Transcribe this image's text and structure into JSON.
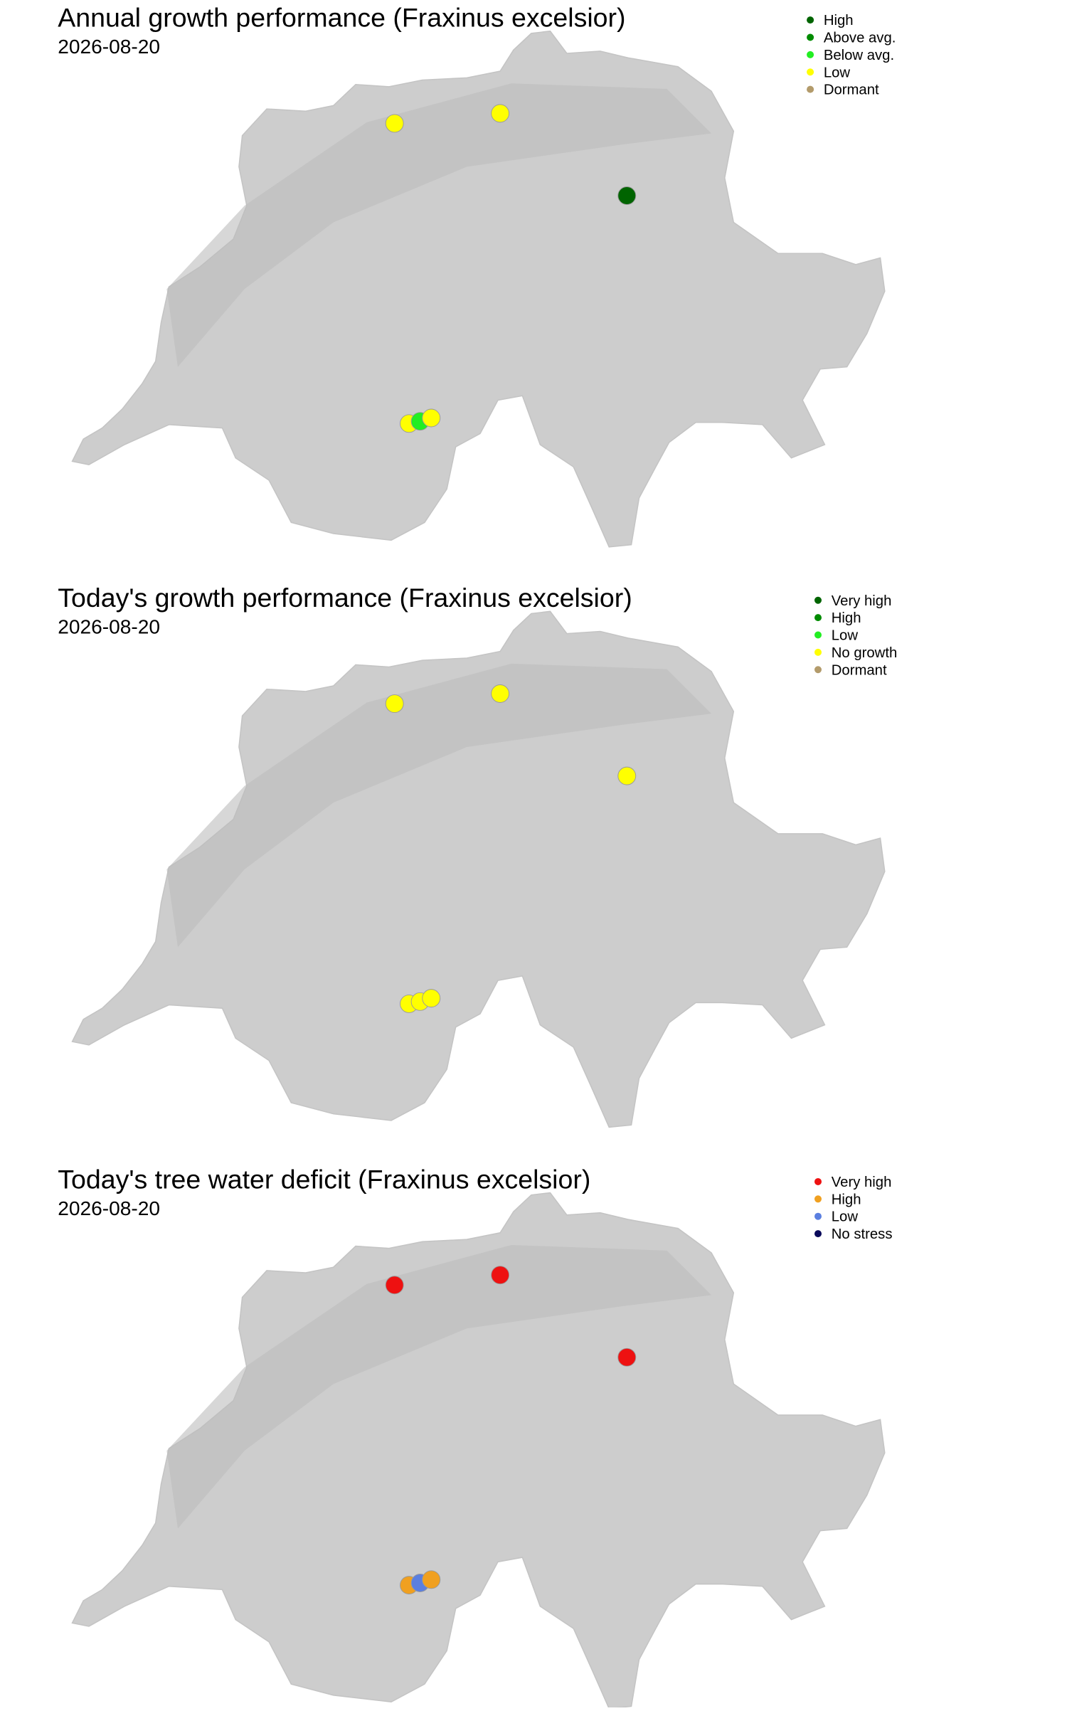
{
  "panels": [
    {
      "title": "Annual growth performance (Fraxinus excelsior)",
      "date": "2026-08-20",
      "legend": [
        {
          "label": "High",
          "color": "#006400"
        },
        {
          "label": "Above avg.",
          "color": "#008b00"
        },
        {
          "label": "Below avg.",
          "color": "#22ee22"
        },
        {
          "label": "Low",
          "color": "#ffff00"
        },
        {
          "label": "Dormant",
          "color": "#b39b6b"
        }
      ],
      "sites": [
        "Low",
        "Low",
        "High",
        "Low",
        "Below avg.",
        "Low"
      ]
    },
    {
      "title": "Today's growth performance (Fraxinus excelsior)",
      "date": "2026-08-20",
      "legend": [
        {
          "label": "Very high",
          "color": "#006400"
        },
        {
          "label": "High",
          "color": "#008b00"
        },
        {
          "label": "Low",
          "color": "#22ee22"
        },
        {
          "label": "No growth",
          "color": "#ffff00"
        },
        {
          "label": "Dormant",
          "color": "#b39b6b"
        }
      ],
      "sites": [
        "No growth",
        "No growth",
        "No growth",
        "No growth",
        "No growth",
        "No growth"
      ]
    },
    {
      "title": "Today's tree water deficit (Fraxinus excelsior)",
      "date": "2026-08-20",
      "legend": [
        {
          "label": "Very high",
          "color": "#ee1111"
        },
        {
          "label": "High",
          "color": "#f0a020"
        },
        {
          "label": "Low",
          "color": "#5b7fe0"
        },
        {
          "label": "No stress",
          "color": "#0a0a5a"
        }
      ],
      "sites": [
        "Very high",
        "Very high",
        "Very high",
        "High",
        "Low",
        "High"
      ]
    }
  ]
}
